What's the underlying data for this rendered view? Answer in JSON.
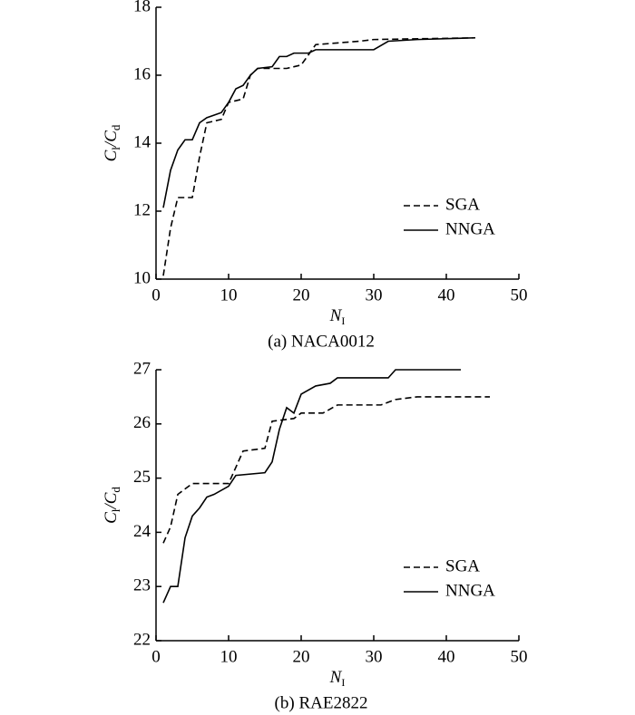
{
  "chart_data": [
    {
      "type": "line",
      "ylabel": [
        "C",
        "l",
        "/C",
        "d"
      ],
      "xlabel": [
        "N",
        "I"
      ],
      "caption": "(a) NACA0012",
      "xlim": [
        0,
        50
      ],
      "xticks": [
        0,
        10,
        20,
        30,
        40,
        50
      ],
      "ylim": [
        10,
        18
      ],
      "yticks": [
        10,
        12,
        14,
        16,
        18
      ],
      "legend": "lower right",
      "series": [
        {
          "name": "SGA",
          "color": "#000000",
          "linestyle": "dashed",
          "x": [
            1,
            2,
            3,
            5,
            6,
            7,
            9,
            10,
            12,
            13,
            14,
            18,
            20,
            22,
            28,
            30,
            44
          ],
          "values": [
            10.1,
            11.5,
            12.4,
            12.4,
            13.6,
            14.6,
            14.7,
            15.2,
            15.3,
            16.0,
            16.2,
            16.2,
            16.3,
            16.9,
            17.0,
            17.05,
            17.1
          ]
        },
        {
          "name": "NNGA",
          "color": "#000000",
          "linestyle": "solid",
          "x": [
            1,
            2,
            3,
            4,
            5,
            6,
            7,
            9,
            10,
            11,
            12,
            13,
            14,
            16,
            17,
            18,
            19,
            21,
            22,
            30,
            32,
            36,
            44
          ],
          "values": [
            12.1,
            13.2,
            13.8,
            14.1,
            14.1,
            14.6,
            14.75,
            14.9,
            15.2,
            15.6,
            15.7,
            16.0,
            16.2,
            16.25,
            16.55,
            16.55,
            16.65,
            16.65,
            16.75,
            16.75,
            17.0,
            17.05,
            17.1
          ]
        }
      ]
    },
    {
      "type": "line",
      "ylabel": [
        "C",
        "l",
        "/C",
        "d"
      ],
      "xlabel": [
        "N",
        "I"
      ],
      "caption": "(b) RAE2822",
      "xlim": [
        0,
        50
      ],
      "xticks": [
        0,
        10,
        20,
        30,
        40,
        50
      ],
      "ylim": [
        22,
        27
      ],
      "yticks": [
        22,
        23,
        24,
        25,
        26,
        27
      ],
      "legend": "lower right",
      "series": [
        {
          "name": "SGA",
          "color": "#000000",
          "linestyle": "dashed",
          "x": [
            1,
            2,
            3,
            5,
            10,
            11,
            12,
            15,
            16,
            19,
            20,
            23,
            25,
            31,
            33,
            36,
            46
          ],
          "values": [
            23.8,
            24.1,
            24.7,
            24.9,
            24.9,
            25.2,
            25.5,
            25.55,
            26.05,
            26.1,
            26.2,
            26.2,
            26.35,
            26.35,
            26.45,
            26.5,
            26.5
          ]
        },
        {
          "name": "NNGA",
          "color": "#000000",
          "linestyle": "solid",
          "x": [
            1,
            2,
            3,
            4,
            5,
            6,
            7,
            8,
            10,
            11,
            15,
            16,
            17,
            18,
            19,
            20,
            22,
            24,
            25,
            32,
            33,
            42
          ],
          "values": [
            22.7,
            23.0,
            23.0,
            23.9,
            24.3,
            24.45,
            24.65,
            24.7,
            24.85,
            25.05,
            25.1,
            25.3,
            25.9,
            26.3,
            26.2,
            26.55,
            26.7,
            26.75,
            26.85,
            26.85,
            27.0,
            27.0
          ]
        }
      ]
    }
  ]
}
